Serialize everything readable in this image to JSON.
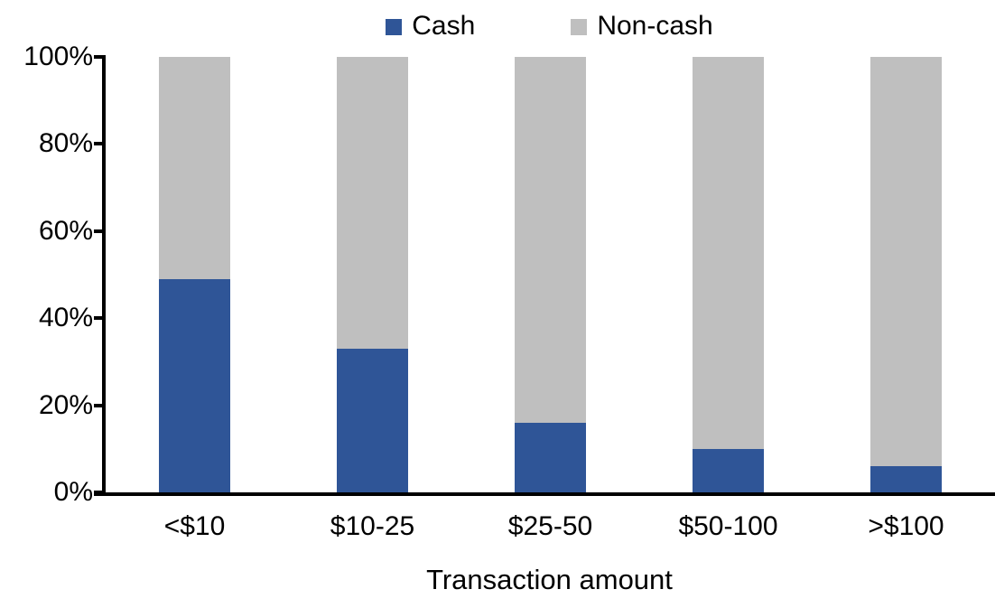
{
  "chart_data": {
    "type": "bar",
    "variant": "stacked-100-percent",
    "title": "",
    "xlabel": "Transaction amount",
    "ylabel": "",
    "categories": [
      "<$10",
      "$10-25",
      "$25-50",
      "$50-100",
      ">$100"
    ],
    "series": [
      {
        "name": "Cash",
        "color": "#2F5597",
        "values": [
          49,
          33,
          16,
          10,
          6
        ]
      },
      {
        "name": "Non-cash",
        "color": "#BFBFBF",
        "values": [
          51,
          67,
          84,
          90,
          94
        ]
      }
    ],
    "y_ticks": [
      {
        "value": 0,
        "label": "0%"
      },
      {
        "value": 20,
        "label": "20%"
      },
      {
        "value": 40,
        "label": "40%"
      },
      {
        "value": 60,
        "label": "60%"
      },
      {
        "value": 80,
        "label": "80%"
      },
      {
        "value": 100,
        "label": "100%"
      }
    ],
    "ylim": [
      0,
      100
    ],
    "grid": false,
    "legend_position": "top",
    "axis_color": "#000000",
    "background_color": "#FFFFFF"
  }
}
